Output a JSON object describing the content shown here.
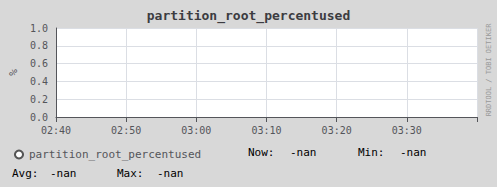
{
  "chart_data": {
    "type": "line",
    "title": "partition_root_percentused",
    "ylabel": "%",
    "categories": [
      "02:40",
      "02:50",
      "03:00",
      "03:10",
      "03:20",
      "03:30",
      null
    ],
    "series": [
      {
        "name": "partition_root_percentused",
        "color": "#555555",
        "values": [
          null,
          null,
          null,
          null,
          null,
          null,
          null
        ]
      }
    ],
    "ylim": [
      0.0,
      1.0
    ],
    "yticks": [
      {
        "value": 0.0,
        "label": "0.0"
      },
      {
        "value": 0.2,
        "label": "0.2"
      },
      {
        "value": 0.4,
        "label": "0.4"
      },
      {
        "value": 0.6,
        "label": "0.6"
      },
      {
        "value": 0.8,
        "label": "0.8"
      },
      {
        "value": 1.0,
        "label": "1.0"
      }
    ],
    "grid": true,
    "legend": "bottom",
    "annotations": [
      "Now:",
      "-nan",
      "Min:",
      "-nan",
      "Avg:",
      "-nan",
      "Max:",
      "-nan",
      "RRDTOOL / TOBI OETIKER"
    ]
  }
}
